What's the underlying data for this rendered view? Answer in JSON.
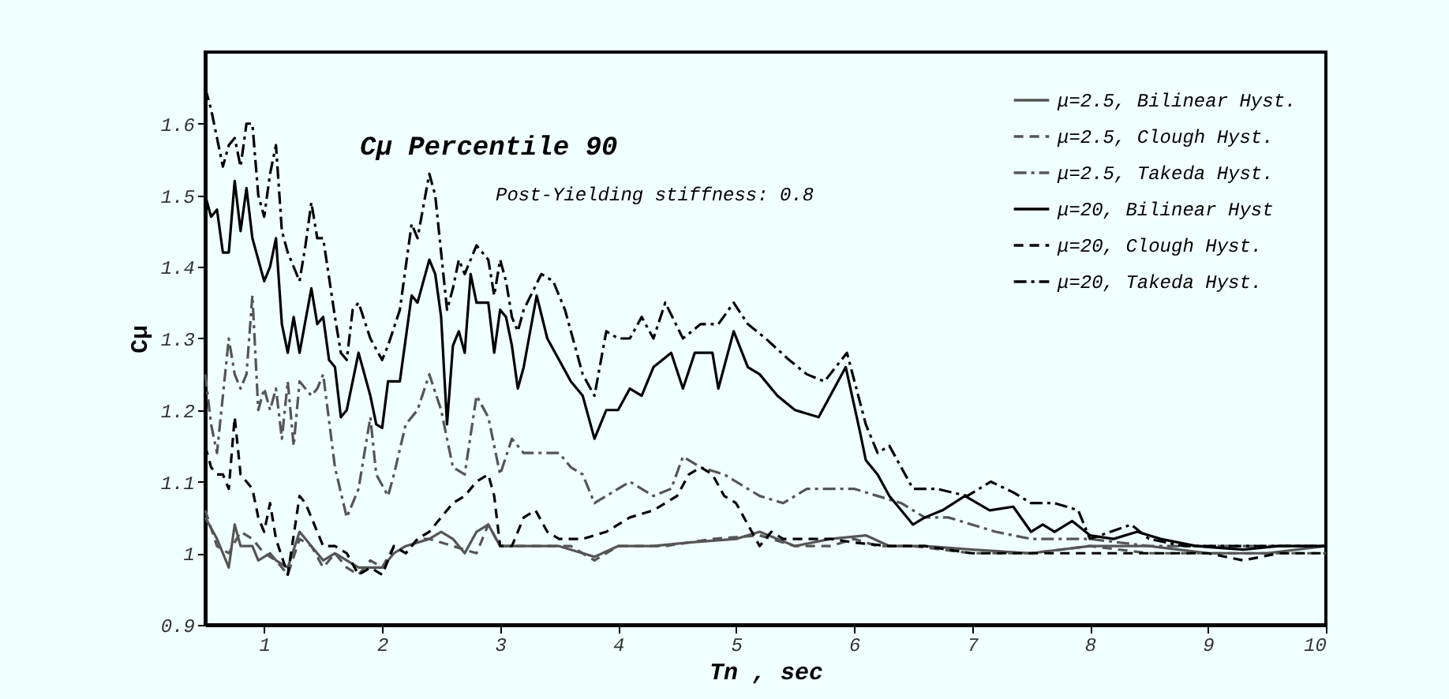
{
  "chart_data": {
    "type": "line",
    "title": "Cμ Percentile 90",
    "xlabel": "Tn , sec",
    "ylabel": "Cμ",
    "annotations": [
      "Post-Yielding stiffness: 0.8"
    ],
    "xlim": [
      0.5,
      10
    ],
    "xticks": [
      1,
      2,
      3,
      4,
      5,
      6,
      7,
      8,
      9,
      10
    ],
    "ylim": [
      0.9,
      1.7
    ],
    "yticks": [
      0.9,
      1,
      1.1,
      1.2,
      1.3,
      1.4,
      1.5,
      1.6
    ],
    "grid": false,
    "legend": "top right",
    "marker": "none",
    "series": [
      {
        "name": "μ=2.5, Bilinear Hyst.",
        "color": "#555555",
        "line_style": "solid",
        "x": [
          0.5,
          0.6,
          0.7,
          0.75,
          0.8,
          0.9,
          0.95,
          1.05,
          1.1,
          1.2,
          1.3,
          1.35,
          1.4,
          1.5,
          1.6,
          1.7,
          1.8,
          1.9,
          2.0,
          2.1,
          2.2,
          2.4,
          2.5,
          2.6,
          2.7,
          2.8,
          2.9,
          3.0,
          3.2,
          3.5,
          3.8,
          4.0,
          4.3,
          4.6,
          5.0,
          5.2,
          5.5,
          5.8,
          6.1,
          6.3,
          6.6,
          7.0,
          7.5,
          8.0,
          8.5,
          9.0,
          9.5,
          10
        ],
        "values": [
          1.05,
          1.02,
          0.98,
          1.04,
          1.01,
          1.01,
          0.99,
          1.0,
          0.99,
          0.98,
          1.03,
          1.02,
          1.01,
          0.99,
          1.0,
          0.99,
          0.98,
          0.98,
          0.98,
          1.0,
          1.01,
          1.02,
          1.03,
          1.02,
          1.0,
          1.03,
          1.04,
          1.01,
          1.01,
          1.01,
          0.995,
          1.01,
          1.01,
          1.015,
          1.02,
          1.03,
          1.01,
          1.02,
          1.025,
          1.01,
          1.01,
          1.005,
          1.0,
          1.01,
          1.01,
          1.0,
          1.0,
          1.01
        ]
      },
      {
        "name": "μ=2.5, Clough Hyst.",
        "color": "#555555",
        "line_style": "dashed",
        "x": [
          0.5,
          0.6,
          0.7,
          0.8,
          0.9,
          1.0,
          1.1,
          1.2,
          1.3,
          1.4,
          1.5,
          1.6,
          1.7,
          1.8,
          1.9,
          2.0,
          2.1,
          2.2,
          2.3,
          2.4,
          2.6,
          2.8,
          2.9,
          3.0,
          3.3,
          3.6,
          3.8,
          4.0,
          4.4,
          4.8,
          5.2,
          5.5,
          5.8,
          6.0,
          6.2,
          6.5,
          7.0,
          7.5,
          8.0,
          8.5,
          9.0,
          9.5,
          10
        ],
        "values": [
          1.06,
          1.01,
          1.0,
          1.03,
          1.02,
          1.0,
          0.99,
          0.97,
          1.02,
          1.01,
          0.98,
          1.0,
          0.98,
          0.97,
          0.99,
          0.98,
          1.01,
          1.0,
          1.02,
          1.02,
          1.01,
          1.0,
          1.04,
          1.01,
          1.01,
          1.01,
          0.99,
          1.01,
          1.01,
          1.02,
          1.025,
          1.01,
          1.01,
          1.02,
          1.01,
          1.01,
          1.0,
          1.0,
          1.01,
          1.0,
          1.0,
          1.0,
          1.0
        ]
      },
      {
        "name": "μ=2.5, Takeda Hyst.",
        "color": "#555555",
        "line_style": "dashdot",
        "x": [
          0.5,
          0.55,
          0.6,
          0.65,
          0.7,
          0.75,
          0.8,
          0.85,
          0.9,
          0.95,
          1.0,
          1.05,
          1.1,
          1.15,
          1.2,
          1.25,
          1.3,
          1.4,
          1.45,
          1.5,
          1.6,
          1.7,
          1.8,
          1.9,
          1.95,
          2.05,
          2.1,
          2.2,
          2.3,
          2.4,
          2.5,
          2.6,
          2.7,
          2.8,
          2.9,
          3.0,
          3.1,
          3.2,
          3.3,
          3.4,
          3.5,
          3.6,
          3.7,
          3.8,
          3.9,
          4.1,
          4.3,
          4.45,
          4.55,
          4.7,
          4.9,
          5.0,
          5.2,
          5.4,
          5.6,
          5.8,
          6.0,
          6.2,
          6.4,
          6.6,
          6.8,
          7.0,
          7.2,
          7.5,
          7.8,
          8.0,
          8.5,
          9.0,
          9.5,
          10
        ],
        "values": [
          1.25,
          1.18,
          1.14,
          1.22,
          1.3,
          1.25,
          1.23,
          1.25,
          1.36,
          1.2,
          1.23,
          1.2,
          1.23,
          1.16,
          1.24,
          1.15,
          1.24,
          1.22,
          1.23,
          1.25,
          1.12,
          1.05,
          1.09,
          1.19,
          1.11,
          1.08,
          1.11,
          1.18,
          1.2,
          1.25,
          1.2,
          1.12,
          1.11,
          1.22,
          1.19,
          1.11,
          1.16,
          1.14,
          1.14,
          1.14,
          1.14,
          1.12,
          1.11,
          1.07,
          1.08,
          1.1,
          1.08,
          1.09,
          1.135,
          1.12,
          1.11,
          1.1,
          1.08,
          1.07,
          1.09,
          1.09,
          1.09,
          1.08,
          1.07,
          1.05,
          1.05,
          1.04,
          1.03,
          1.02,
          1.02,
          1.02,
          1.01,
          1.01,
          1.01,
          1.01
        ]
      },
      {
        "name": "μ=20,  Bilinear Hyst",
        "color": "#000000",
        "line_style": "solid",
        "x": [
          0.5,
          0.55,
          0.6,
          0.65,
          0.7,
          0.75,
          0.8,
          0.85,
          0.9,
          1.0,
          1.05,
          1.1,
          1.15,
          1.2,
          1.25,
          1.3,
          1.4,
          1.45,
          1.5,
          1.55,
          1.6,
          1.65,
          1.7,
          1.8,
          1.9,
          1.95,
          2.0,
          2.05,
          2.15,
          2.2,
          2.25,
          2.3,
          2.4,
          2.45,
          2.5,
          2.55,
          2.6,
          2.65,
          2.7,
          2.75,
          2.8,
          2.9,
          2.95,
          3.0,
          3.05,
          3.1,
          3.15,
          3.2,
          3.31,
          3.4,
          3.5,
          3.6,
          3.7,
          3.8,
          3.9,
          4.0,
          4.1,
          4.2,
          4.3,
          4.45,
          4.55,
          4.65,
          4.8,
          4.85,
          4.98,
          5.1,
          5.2,
          5.35,
          5.5,
          5.7,
          5.93,
          6.05,
          6.1,
          6.2,
          6.3,
          6.4,
          6.5,
          6.6,
          6.75,
          6.94,
          7.15,
          7.35,
          7.5,
          7.6,
          7.7,
          7.85,
          8.0,
          8.2,
          8.4,
          8.6,
          8.9,
          9.3,
          9.6,
          10
        ],
        "values": [
          1.5,
          1.47,
          1.48,
          1.42,
          1.42,
          1.52,
          1.45,
          1.51,
          1.44,
          1.38,
          1.4,
          1.44,
          1.32,
          1.28,
          1.33,
          1.28,
          1.37,
          1.32,
          1.33,
          1.27,
          1.26,
          1.19,
          1.2,
          1.28,
          1.22,
          1.18,
          1.175,
          1.24,
          1.24,
          1.3,
          1.36,
          1.35,
          1.41,
          1.39,
          1.33,
          1.18,
          1.29,
          1.31,
          1.28,
          1.39,
          1.35,
          1.35,
          1.28,
          1.34,
          1.33,
          1.29,
          1.23,
          1.26,
          1.36,
          1.3,
          1.27,
          1.24,
          1.22,
          1.16,
          1.2,
          1.2,
          1.23,
          1.22,
          1.26,
          1.28,
          1.23,
          1.28,
          1.28,
          1.23,
          1.31,
          1.26,
          1.25,
          1.22,
          1.2,
          1.19,
          1.26,
          1.17,
          1.13,
          1.11,
          1.08,
          1.06,
          1.04,
          1.05,
          1.06,
          1.08,
          1.06,
          1.065,
          1.03,
          1.04,
          1.03,
          1.045,
          1.025,
          1.02,
          1.03,
          1.02,
          1.01,
          1.005,
          1.01,
          1.01
        ]
      },
      {
        "name": "μ=20,  Clough Hyst.",
        "color": "#000000",
        "line_style": "dashed",
        "x": [
          0.5,
          0.55,
          0.6,
          0.65,
          0.7,
          0.75,
          0.8,
          0.9,
          0.95,
          1.0,
          1.05,
          1.1,
          1.2,
          1.3,
          1.35,
          1.45,
          1.5,
          1.6,
          1.7,
          1.8,
          1.9,
          2.0,
          2.1,
          2.2,
          2.3,
          2.4,
          2.5,
          2.6,
          2.7,
          2.8,
          2.9,
          2.95,
          3.0,
          3.1,
          3.2,
          3.3,
          3.4,
          3.5,
          3.7,
          3.9,
          4.1,
          4.3,
          4.5,
          4.6,
          4.7,
          4.8,
          4.9,
          5.0,
          5.1,
          5.2,
          5.3,
          5.4,
          5.6,
          5.8,
          6.0,
          6.3,
          6.6,
          7.0,
          7.5,
          8.0,
          8.5,
          9.0,
          9.3,
          9.6,
          10
        ],
        "values": [
          1.15,
          1.12,
          1.11,
          1.11,
          1.09,
          1.19,
          1.11,
          1.09,
          1.05,
          1.03,
          1.07,
          1.02,
          0.97,
          1.08,
          1.07,
          1.03,
          1.01,
          1.01,
          1.0,
          0.97,
          0.98,
          0.97,
          1.01,
          1.0,
          1.02,
          1.03,
          1.05,
          1.07,
          1.08,
          1.1,
          1.11,
          1.08,
          1.01,
          1.01,
          1.05,
          1.06,
          1.03,
          1.02,
          1.02,
          1.03,
          1.05,
          1.06,
          1.08,
          1.11,
          1.12,
          1.11,
          1.08,
          1.07,
          1.04,
          1.01,
          1.03,
          1.02,
          1.02,
          1.02,
          1.015,
          1.01,
          1.01,
          1.0,
          1.0,
          1.0,
          1.0,
          1.0,
          0.99,
          1.0,
          1.0
        ]
      },
      {
        "name": "μ=20,  Takeda Hyst.",
        "color": "#000000",
        "line_style": "dashdot",
        "x": [
          0.5,
          0.55,
          0.6,
          0.65,
          0.7,
          0.75,
          0.8,
          0.85,
          0.9,
          0.95,
          1.0,
          1.05,
          1.1,
          1.15,
          1.2,
          1.3,
          1.35,
          1.4,
          1.45,
          1.5,
          1.6,
          1.65,
          1.7,
          1.75,
          1.8,
          1.9,
          2.0,
          2.05,
          2.15,
          2.25,
          2.3,
          2.4,
          2.45,
          2.55,
          2.6,
          2.65,
          2.7,
          2.8,
          2.9,
          2.95,
          3.0,
          3.05,
          3.1,
          3.15,
          3.2,
          3.35,
          3.45,
          3.55,
          3.7,
          3.8,
          3.9,
          4.0,
          4.1,
          4.2,
          4.3,
          4.4,
          4.55,
          4.7,
          4.85,
          4.98,
          5.1,
          5.25,
          5.45,
          5.6,
          5.75,
          5.94,
          6.1,
          6.2,
          6.3,
          6.4,
          6.5,
          6.7,
          6.96,
          7.16,
          7.35,
          7.5,
          7.7,
          7.9,
          8.0,
          8.35,
          8.5,
          8.8,
          9.0,
          9.5,
          10
        ],
        "values": [
          1.65,
          1.62,
          1.58,
          1.54,
          1.57,
          1.58,
          1.54,
          1.6,
          1.6,
          1.5,
          1.47,
          1.53,
          1.57,
          1.45,
          1.42,
          1.38,
          1.43,
          1.49,
          1.44,
          1.44,
          1.33,
          1.28,
          1.27,
          1.34,
          1.35,
          1.3,
          1.27,
          1.29,
          1.34,
          1.46,
          1.44,
          1.53,
          1.5,
          1.34,
          1.37,
          1.41,
          1.39,
          1.43,
          1.41,
          1.36,
          1.41,
          1.38,
          1.33,
          1.31,
          1.34,
          1.39,
          1.38,
          1.34,
          1.25,
          1.22,
          1.31,
          1.3,
          1.3,
          1.33,
          1.3,
          1.35,
          1.3,
          1.32,
          1.32,
          1.35,
          1.32,
          1.3,
          1.27,
          1.25,
          1.24,
          1.28,
          1.18,
          1.14,
          1.15,
          1.12,
          1.09,
          1.09,
          1.08,
          1.1,
          1.085,
          1.07,
          1.07,
          1.06,
          1.02,
          1.04,
          1.02,
          1.01,
          1.01,
          1.01,
          1.01
        ]
      }
    ]
  }
}
